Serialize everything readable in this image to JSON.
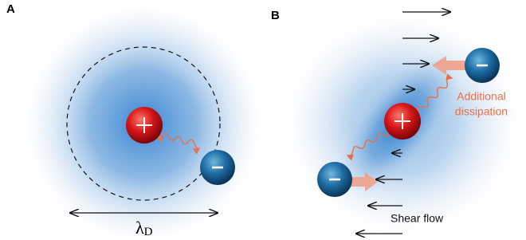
{
  "panels": [
    {
      "label": "A",
      "length": {
        "symbol": "λ",
        "subscript": "D"
      }
    },
    {
      "label": "B",
      "annotation": [
        "Additional",
        "dissipation"
      ],
      "flow_label": "Shear flow"
    }
  ]
}
